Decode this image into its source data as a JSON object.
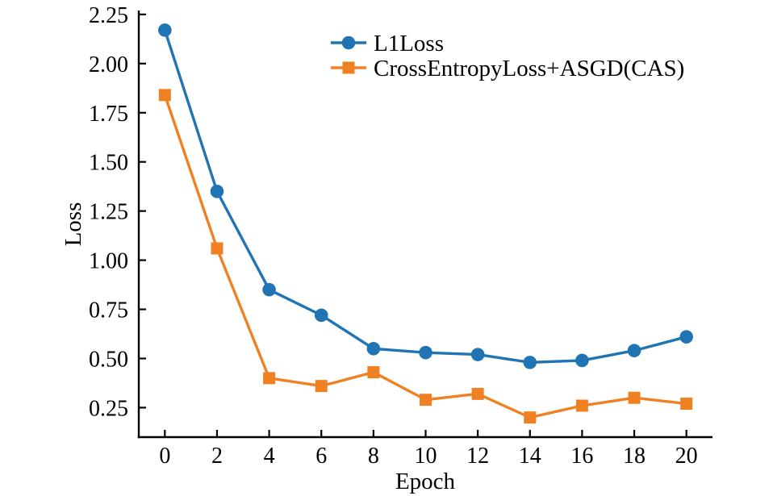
{
  "chart_data": {
    "type": "line",
    "title": "",
    "xlabel": "Epoch",
    "ylabel": "Loss",
    "x": [
      0,
      2,
      4,
      6,
      8,
      10,
      12,
      14,
      16,
      18,
      20
    ],
    "series": [
      {
        "name": "L1Loss",
        "color": "#2074b4",
        "marker": "circle",
        "values": [
          2.17,
          1.35,
          0.85,
          0.72,
          0.55,
          0.53,
          0.52,
          0.48,
          0.49,
          0.54,
          0.61
        ]
      },
      {
        "name": "CrossEntropyLoss+ASGD(CAS)",
        "color": "#f08123",
        "marker": "square",
        "values": [
          1.84,
          1.06,
          0.4,
          0.36,
          0.43,
          0.29,
          0.32,
          0.2,
          0.26,
          0.3,
          0.27
        ]
      }
    ],
    "xticks": [
      0,
      2,
      4,
      6,
      8,
      10,
      12,
      14,
      16,
      18,
      20
    ],
    "xtick_labels": [
      "0",
      "2",
      "4",
      "6",
      "8",
      "10",
      "12",
      "14",
      "16",
      "18",
      "20"
    ],
    "yticks": [
      0.25,
      0.5,
      0.75,
      1.0,
      1.25,
      1.5,
      1.75,
      2.0,
      2.25
    ],
    "ytick_labels": [
      "0.25",
      "0.50",
      "0.75",
      "1.00",
      "1.25",
      "1.50",
      "1.75",
      "2.00",
      "2.25"
    ],
    "xlim": [
      -1,
      21
    ],
    "ylim": [
      0.1,
      2.27
    ],
    "grid": false,
    "legend_position": "upper center",
    "legend_frame": false,
    "spines": [
      "left",
      "bottom"
    ],
    "tick_direction": "in"
  },
  "colors": {
    "background": "#ffffff",
    "axis": "#000000",
    "text": "#000000"
  }
}
